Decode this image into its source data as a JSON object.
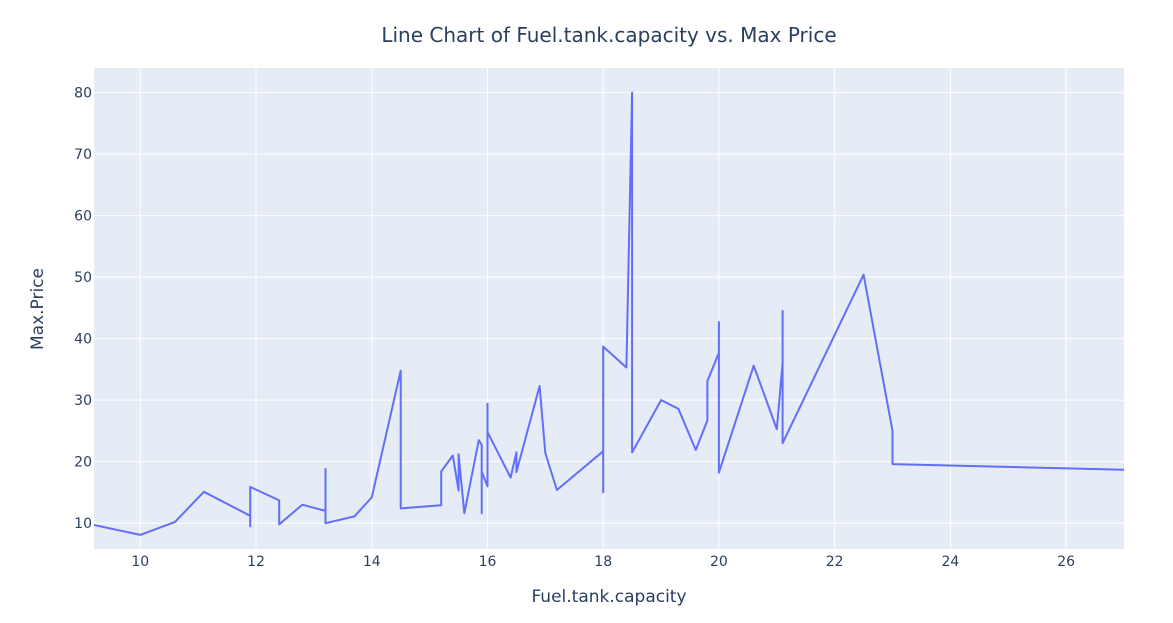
{
  "chart_data": {
    "type": "line",
    "title": "Line Chart of Fuel.tank.capacity vs. Max Price",
    "xlabel": "Fuel.tank.capacity",
    "ylabel": "Max.Price",
    "xlim": [
      9.2,
      27
    ],
    "ylim": [
      5.8,
      84
    ],
    "xticks": [
      10,
      12,
      14,
      16,
      18,
      20,
      22,
      24,
      26
    ],
    "yticks": [
      10,
      20,
      30,
      40,
      50,
      60,
      70,
      80
    ],
    "grid": true,
    "legend": "none",
    "colors": {
      "line": "#636efa",
      "plot_bg": "#e5ecf6",
      "grid": "#ffffff",
      "text": "#2a3f5f"
    },
    "series": [
      {
        "x": [
          9.2,
          10.0,
          10.6,
          11.1,
          11.9,
          11.9,
          11.9,
          12.4,
          12.4,
          12.8,
          13.2,
          13.2,
          13.2,
          13.7,
          14.0,
          14.5,
          14.5,
          15.2,
          15.2,
          15.4,
          15.5,
          15.5,
          15.6,
          15.85,
          15.9,
          15.9,
          15.9,
          16.0,
          16.0,
          16.0,
          16.4,
          16.5,
          16.5,
          16.9,
          17.0,
          17.2,
          18.0,
          18.0,
          18.0,
          18.4,
          18.5,
          18.5,
          18.5,
          19.0,
          19.3,
          19.6,
          19.8,
          19.8,
          20.0,
          20.0,
          20.0,
          20.6,
          21.0,
          21.1,
          21.1,
          21.1,
          22.5,
          23.0,
          23.0,
          27.0
        ],
        "y": [
          9.7,
          8.1,
          10.2,
          15.1,
          11.2,
          9.5,
          15.9,
          13.7,
          9.8,
          13.0,
          12.0,
          18.8,
          10.0,
          11.1,
          14.2,
          34.8,
          12.4,
          12.9,
          18.4,
          21.0,
          15.3,
          21.2,
          11.6,
          23.5,
          22.7,
          11.6,
          18.4,
          16.0,
          29.4,
          24.8,
          17.4,
          21.5,
          18.3,
          32.3,
          21.4,
          15.4,
          21.7,
          15.0,
          38.7,
          35.3,
          80.0,
          60.0,
          21.5,
          30.0,
          28.6,
          21.9,
          26.7,
          33.1,
          37.7,
          42.7,
          18.2,
          35.6,
          25.3,
          36.0,
          44.5,
          23.0,
          50.4,
          25.0,
          19.6,
          18.7
        ]
      }
    ]
  }
}
